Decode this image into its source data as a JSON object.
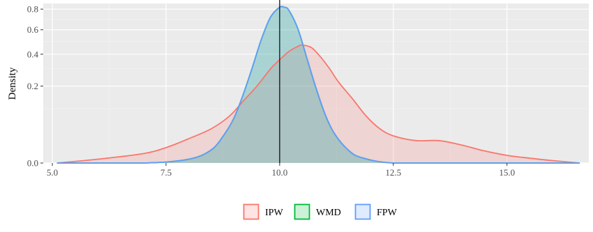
{
  "chart_data": {
    "type": "area",
    "title": "",
    "xlabel": "",
    "ylabel": "Density",
    "xlim": [
      4.8,
      16.8
    ],
    "x_ticks": [
      5.0,
      7.5,
      10.0,
      12.5,
      15.0
    ],
    "x_tick_labels": [
      "5.0",
      "7.5",
      "10.0",
      "12.5",
      "15.0"
    ],
    "y_scale": "sqrt",
    "ylim": [
      0,
      0.86
    ],
    "y_ticks": [
      0.0,
      0.2,
      0.4,
      0.6,
      0.8
    ],
    "y_tick_labels": [
      "0.0",
      "0.2",
      "0.4",
      "0.6",
      "0.8"
    ],
    "grid": true,
    "legend_position": "bottom",
    "vline": 10.0,
    "series": [
      {
        "name": "IPW",
        "color": "#F8766D",
        "fill": "#F8766D",
        "x": [
          5.1,
          6.0,
          7.0,
          7.5,
          8.0,
          8.5,
          8.9,
          9.2,
          9.5,
          9.8,
          10.0,
          10.2,
          10.4,
          10.5,
          10.7,
          10.9,
          11.1,
          11.3,
          11.6,
          11.9,
          12.2,
          12.5,
          13.0,
          13.5,
          14.0,
          14.5,
          15.0,
          15.5,
          16.0,
          16.6
        ],
        "y": [
          0.0,
          0.0005,
          0.003,
          0.008,
          0.02,
          0.04,
          0.075,
          0.13,
          0.2,
          0.3,
          0.36,
          0.42,
          0.46,
          0.47,
          0.45,
          0.38,
          0.3,
          0.22,
          0.14,
          0.075,
          0.04,
          0.025,
          0.017,
          0.017,
          0.011,
          0.005,
          0.002,
          0.0008,
          0.0002,
          0.0
        ]
      },
      {
        "name": "WMD",
        "color": "#00BA38",
        "fill": "#00BA38",
        "x": [
          5.1,
          7.0,
          8.0,
          8.5,
          8.8,
          9.0,
          9.2,
          9.4,
          9.6,
          9.8,
          10.0,
          10.1,
          10.2,
          10.4,
          10.6,
          10.8,
          11.0,
          11.2,
          11.5,
          11.8,
          12.5,
          14.0,
          16.6
        ],
        "y": [
          0.0,
          0.0,
          0.0005,
          0.006,
          0.03,
          0.07,
          0.16,
          0.31,
          0.52,
          0.72,
          0.82,
          0.82,
          0.79,
          0.61,
          0.37,
          0.19,
          0.08,
          0.03,
          0.006,
          0.001,
          0.0,
          0.0,
          0.0
        ]
      },
      {
        "name": "FPW",
        "color": "#619CFF",
        "fill": "#619CFF",
        "x": [
          5.1,
          7.0,
          8.0,
          8.5,
          8.8,
          9.0,
          9.2,
          9.4,
          9.6,
          9.8,
          10.0,
          10.1,
          10.2,
          10.4,
          10.6,
          10.8,
          11.0,
          11.2,
          11.5,
          11.8,
          12.5,
          14.0,
          16.6
        ],
        "y": [
          0.0,
          0.0,
          0.0005,
          0.006,
          0.03,
          0.07,
          0.16,
          0.31,
          0.52,
          0.72,
          0.82,
          0.82,
          0.79,
          0.61,
          0.37,
          0.19,
          0.08,
          0.03,
          0.006,
          0.001,
          0.0,
          0.0,
          0.0
        ]
      }
    ]
  }
}
